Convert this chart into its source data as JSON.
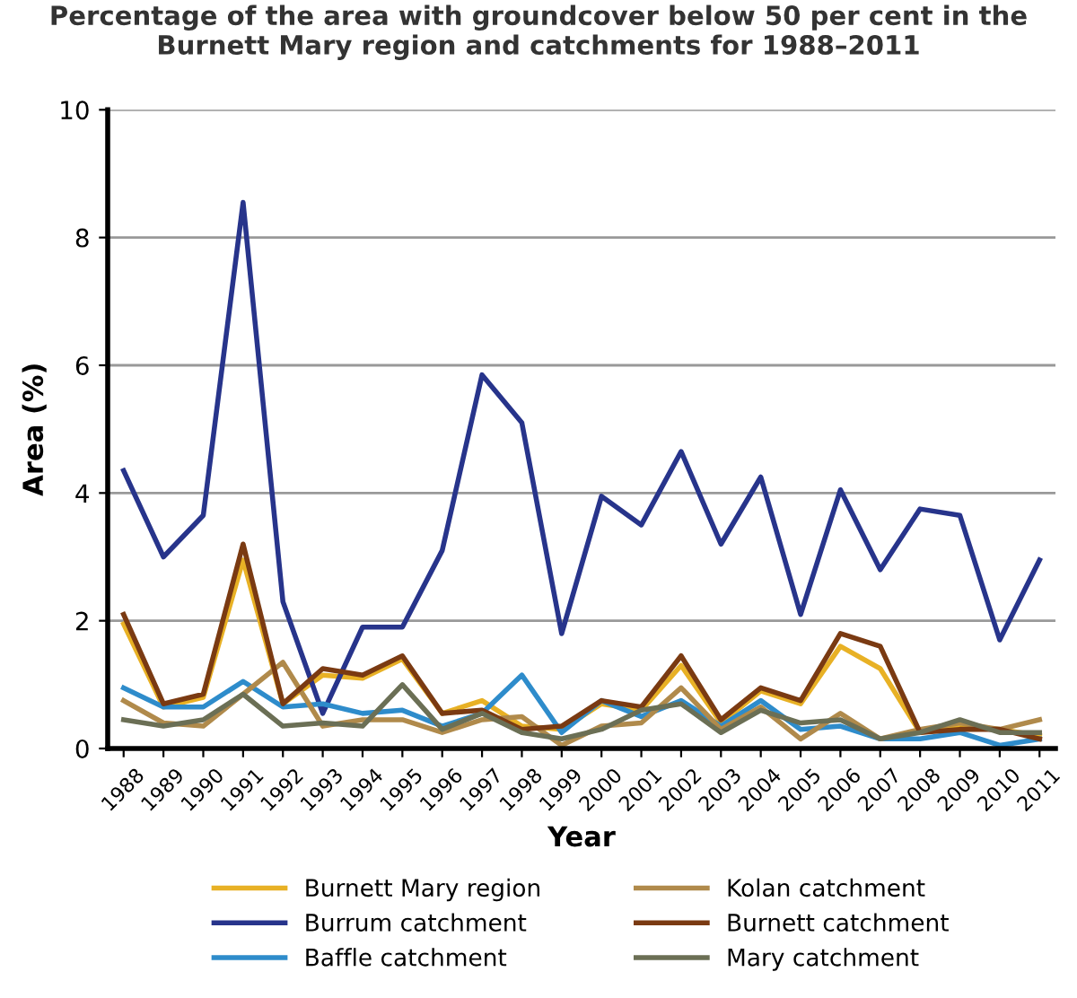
{
  "chart_data": {
    "type": "line",
    "title": "Percentage of the area with groundcover below 50 per cent in the\nBurnett Mary region and catchments for 1988–2011",
    "xlabel": "Year",
    "ylabel": "Area (%)",
    "categories": [
      "1988",
      "1989",
      "1990",
      "1991",
      "1992",
      "1993",
      "1994",
      "1995",
      "1996",
      "1997",
      "1998",
      "1999",
      "2000",
      "2001",
      "2002",
      "2003",
      "2004",
      "2005",
      "2006",
      "2007",
      "2008",
      "2009",
      "2010",
      "2011"
    ],
    "ylim": [
      0,
      10
    ],
    "yticks": [
      0,
      2,
      4,
      6,
      8,
      10
    ],
    "grid": "y",
    "legend": "bottom",
    "marker": "none",
    "line_style": "solid",
    "series": [
      {
        "name": "Burnett Mary region",
        "color": "#e8b125",
        "values": [
          1.95,
          0.65,
          0.8,
          2.95,
          0.7,
          1.15,
          1.1,
          1.4,
          0.55,
          0.75,
          0.35,
          0.3,
          0.7,
          0.6,
          1.3,
          0.4,
          0.9,
          0.7,
          1.6,
          1.25,
          0.25,
          0.35,
          0.3,
          0.2
        ]
      },
      {
        "name": "Burrum catchment",
        "color": "#27348b",
        "values": [
          4.35,
          3.0,
          3.65,
          8.55,
          2.3,
          0.55,
          1.9,
          1.9,
          3.1,
          5.85,
          5.1,
          1.8,
          3.95,
          3.5,
          4.65,
          3.2,
          4.25,
          2.1,
          4.05,
          2.8,
          3.75,
          3.65,
          1.7,
          2.95
        ]
      },
      {
        "name": "Baffle catchment",
        "color": "#2e8ccb",
        "values": [
          0.95,
          0.65,
          0.65,
          1.05,
          0.65,
          0.7,
          0.55,
          0.6,
          0.35,
          0.55,
          1.15,
          0.25,
          0.75,
          0.5,
          0.75,
          0.35,
          0.75,
          0.3,
          0.35,
          0.15,
          0.15,
          0.25,
          0.05,
          0.15
        ]
      },
      {
        "name": "Kolan catchment",
        "color": "#b08a4b",
        "values": [
          0.75,
          0.4,
          0.35,
          0.85,
          1.35,
          0.35,
          0.45,
          0.45,
          0.25,
          0.45,
          0.5,
          0.05,
          0.35,
          0.4,
          0.95,
          0.3,
          0.65,
          0.15,
          0.55,
          0.15,
          0.3,
          0.4,
          0.3,
          0.45
        ]
      },
      {
        "name": "Burnett catchment",
        "color": "#7a3a12",
        "values": [
          2.1,
          0.7,
          0.85,
          3.2,
          0.7,
          1.25,
          1.15,
          1.45,
          0.55,
          0.6,
          0.3,
          0.35,
          0.75,
          0.65,
          1.45,
          0.45,
          0.95,
          0.75,
          1.8,
          1.6,
          0.25,
          0.3,
          0.3,
          0.15
        ]
      },
      {
        "name": "Mary catchment",
        "color": "#6b6f55",
        "values": [
          0.45,
          0.35,
          0.45,
          0.85,
          0.35,
          0.4,
          0.35,
          1.0,
          0.3,
          0.55,
          0.25,
          0.15,
          0.3,
          0.6,
          0.7,
          0.25,
          0.6,
          0.4,
          0.45,
          0.15,
          0.25,
          0.45,
          0.25,
          0.25
        ]
      }
    ]
  }
}
